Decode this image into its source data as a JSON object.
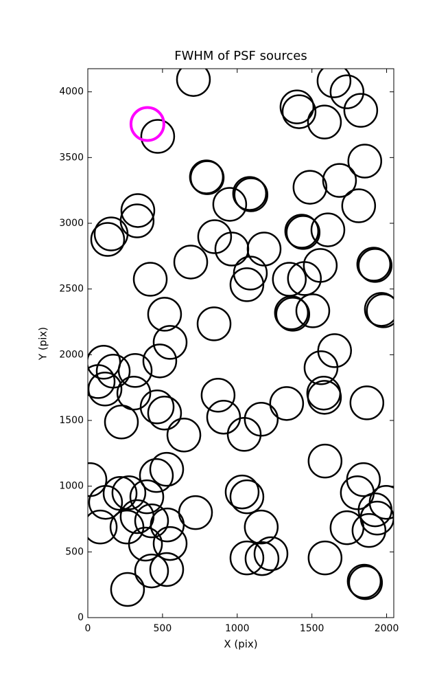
{
  "chart_data": {
    "type": "scatter",
    "title": "FWHM of PSF sources",
    "x_label": "X (pix)",
    "y_label": "Y (pix)",
    "xlim": [
      0,
      2048
    ],
    "ylim": [
      0,
      4176
    ],
    "xticks": [
      0,
      500,
      1000,
      1500,
      2000
    ],
    "yticks": [
      0,
      500,
      1000,
      1500,
      2000,
      2500,
      3000,
      3500,
      4000
    ],
    "grid": false,
    "series": [
      {
        "color": "#000000",
        "x": [
          707,
          468,
          1400,
          1414,
          1648,
          1735,
          1584,
          1827,
          1854,
          1685,
          1487,
          1813,
          794,
          799,
          1083,
          1092,
          950,
          335,
          330,
          156,
          133,
          849,
          964,
          1180,
          1432,
          1441,
          1607,
          1914,
          1923,
          1556,
          1088,
          1065,
          689,
          418,
          1349,
          1450,
          1965,
          1978,
          1506,
          1363,
          1372,
          514,
          845,
          551,
          1652,
          482,
          106,
          170,
          317,
          1561,
          69,
          115,
          308,
          1579,
          1584,
          872,
          464,
          1331,
          1868,
          909,
          514,
          225,
          1161,
          643,
          1047,
          1588,
          528,
          459,
          14,
          216,
          119,
          275,
          395,
          1033,
          1065,
          1845,
          1804,
          1997,
          721,
          1923,
          1937,
          330,
          427,
          532,
          83,
          262,
          1735,
          1161,
          1882,
          386,
          551,
          1065,
          1226,
          1166,
          1588,
          427,
          528,
          1850,
          1859,
          266
        ],
        "y": [
          4094,
          3661,
          3885,
          3849,
          4084,
          4000,
          3770,
          3859,
          3473,
          3326,
          3274,
          3133,
          3353,
          3347,
          3227,
          3217,
          3144,
          3097,
          3018,
          2919,
          2877,
          2898,
          2804,
          2804,
          2940,
          2930,
          2950,
          2689,
          2679,
          2679,
          2621,
          2533,
          2705,
          2574,
          2574,
          2580,
          2345,
          2334,
          2334,
          2319,
          2308,
          2308,
          2235,
          2094,
          2031,
          1953,
          1943,
          1875,
          1880,
          1901,
          1796,
          1739,
          1708,
          1708,
          1676,
          1692,
          1603,
          1629,
          1634,
          1525,
          1556,
          1488,
          1509,
          1389,
          1394,
          1191,
          1128,
          1081,
          1050,
          945,
          877,
          950,
          919,
          956,
          919,
          1050,
          950,
          877,
          799,
          820,
          757,
          768,
          736,
          705,
          689,
          689,
          684,
          689,
          663,
          559,
          564,
          454,
          486,
          449,
          454,
          355,
          366,
          277,
          266,
          214
        ]
      },
      {
        "color": "#ff00ff",
        "x": [
          399
        ],
        "y": [
          3755
        ]
      }
    ]
  }
}
